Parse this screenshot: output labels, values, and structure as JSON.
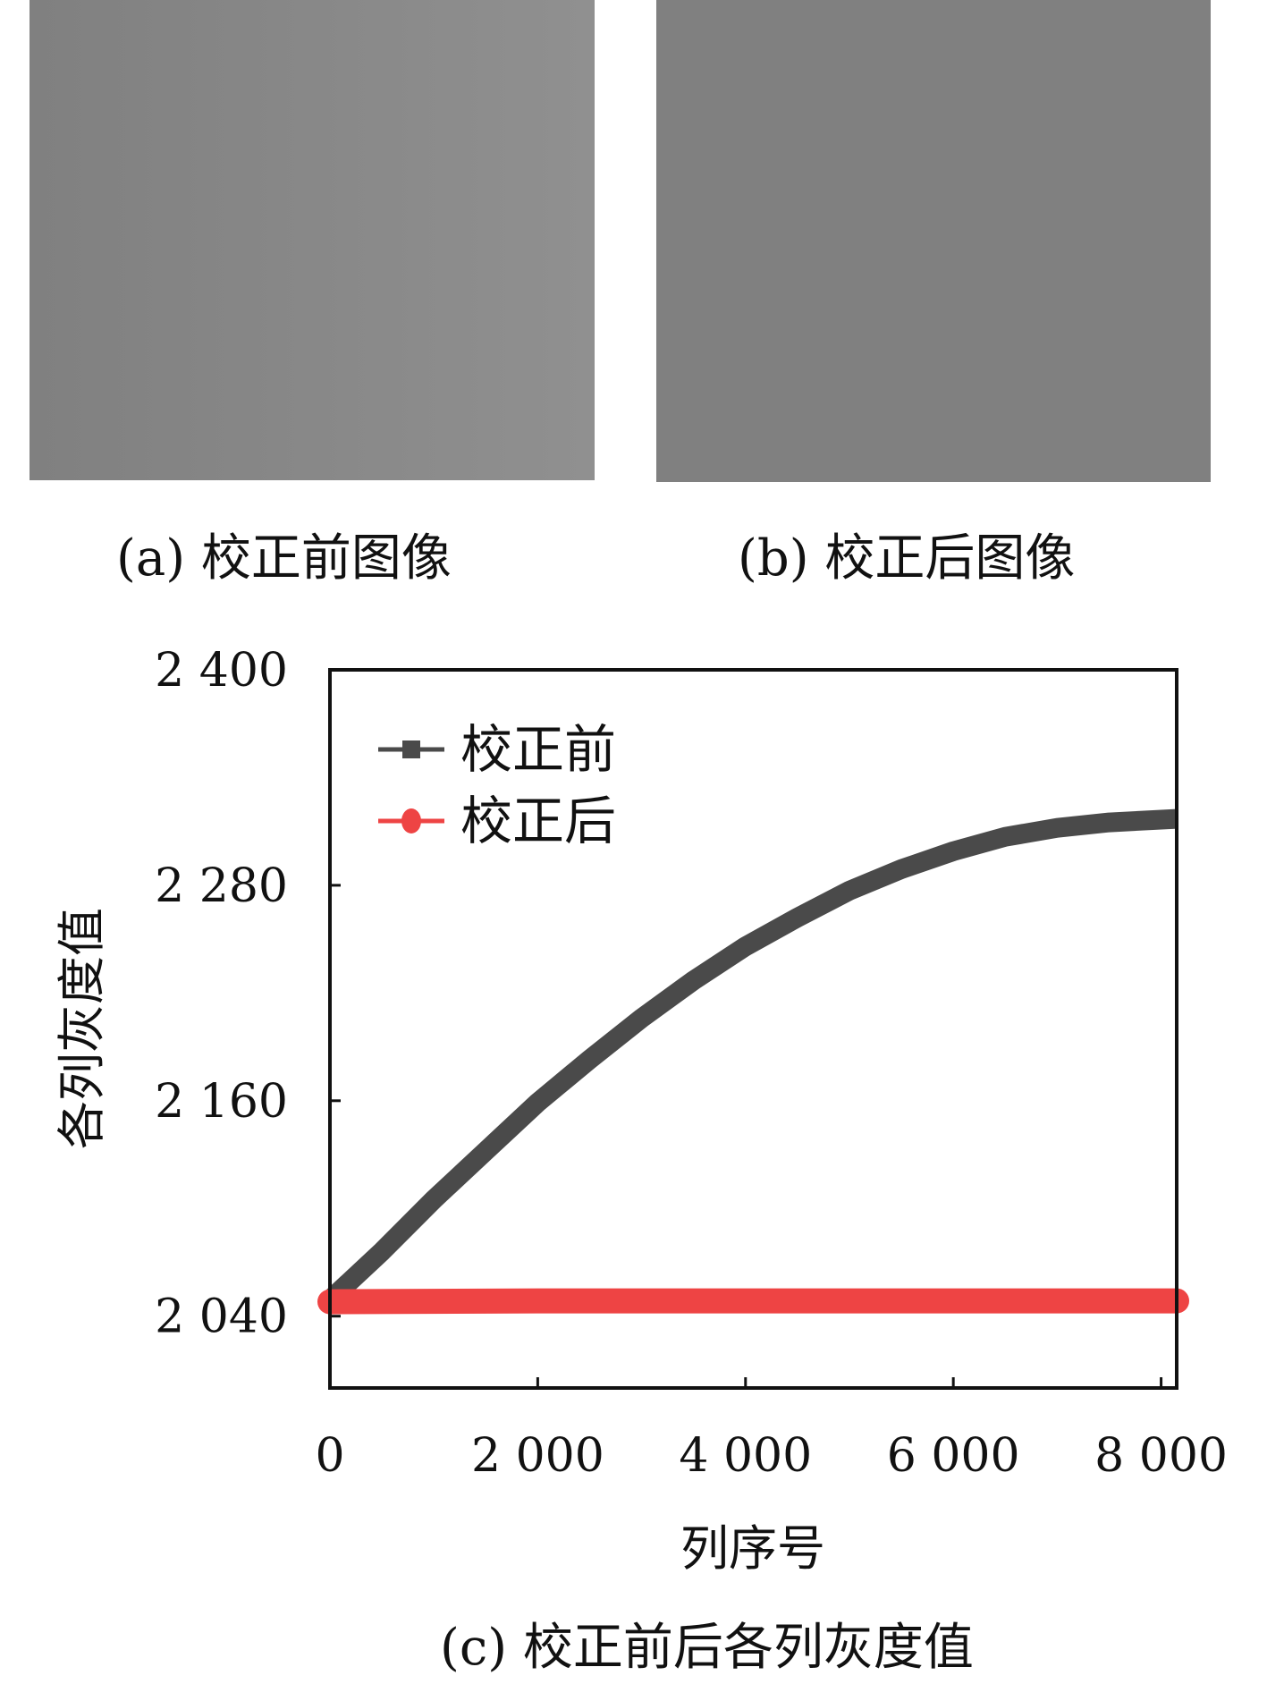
{
  "panels": {
    "a": {
      "caption": "(a) 校正前图像",
      "shade_left": "#808080",
      "shade_right": "#909090"
    },
    "b": {
      "caption": "(b) 校正后图像",
      "shade": "#808080"
    },
    "c": {
      "caption": "(c) 校正前后各列灰度值"
    }
  },
  "chart_data": {
    "type": "line",
    "xlabel": "列序号",
    "ylabel": "各列灰度值",
    "xlim": [
      0,
      8150
    ],
    "ylim": [
      2000,
      2400
    ],
    "x_ticks": [
      0,
      2000,
      4000,
      6000,
      8000
    ],
    "x_tick_labels": [
      "0",
      "2 000",
      "4 000",
      "6 000",
      "8 000"
    ],
    "y_ticks": [
      2040,
      2160,
      2280,
      2400
    ],
    "y_tick_labels": [
      "2 040",
      "2 160",
      "2 280",
      "2 400"
    ],
    "grid": false,
    "legend_position": "top-left",
    "series": [
      {
        "name": "校正前",
        "color": "#4a4a4a",
        "marker": "square",
        "x": [
          0,
          500,
          1000,
          1500,
          2000,
          2500,
          3000,
          3500,
          4000,
          4500,
          5000,
          5500,
          6000,
          6500,
          7000,
          7500,
          8150
        ],
        "y": [
          2049,
          2076,
          2105,
          2132,
          2159,
          2183,
          2206,
          2227,
          2246,
          2262,
          2277,
          2289,
          2299,
          2307,
          2312,
          2315,
          2317
        ]
      },
      {
        "name": "校正后",
        "color": "#ee4444",
        "marker": "circle",
        "x": [
          0,
          2000,
          4000,
          6000,
          8150
        ],
        "y": [
          2048,
          2048.5,
          2048.5,
          2048.5,
          2048.5
        ]
      }
    ]
  }
}
